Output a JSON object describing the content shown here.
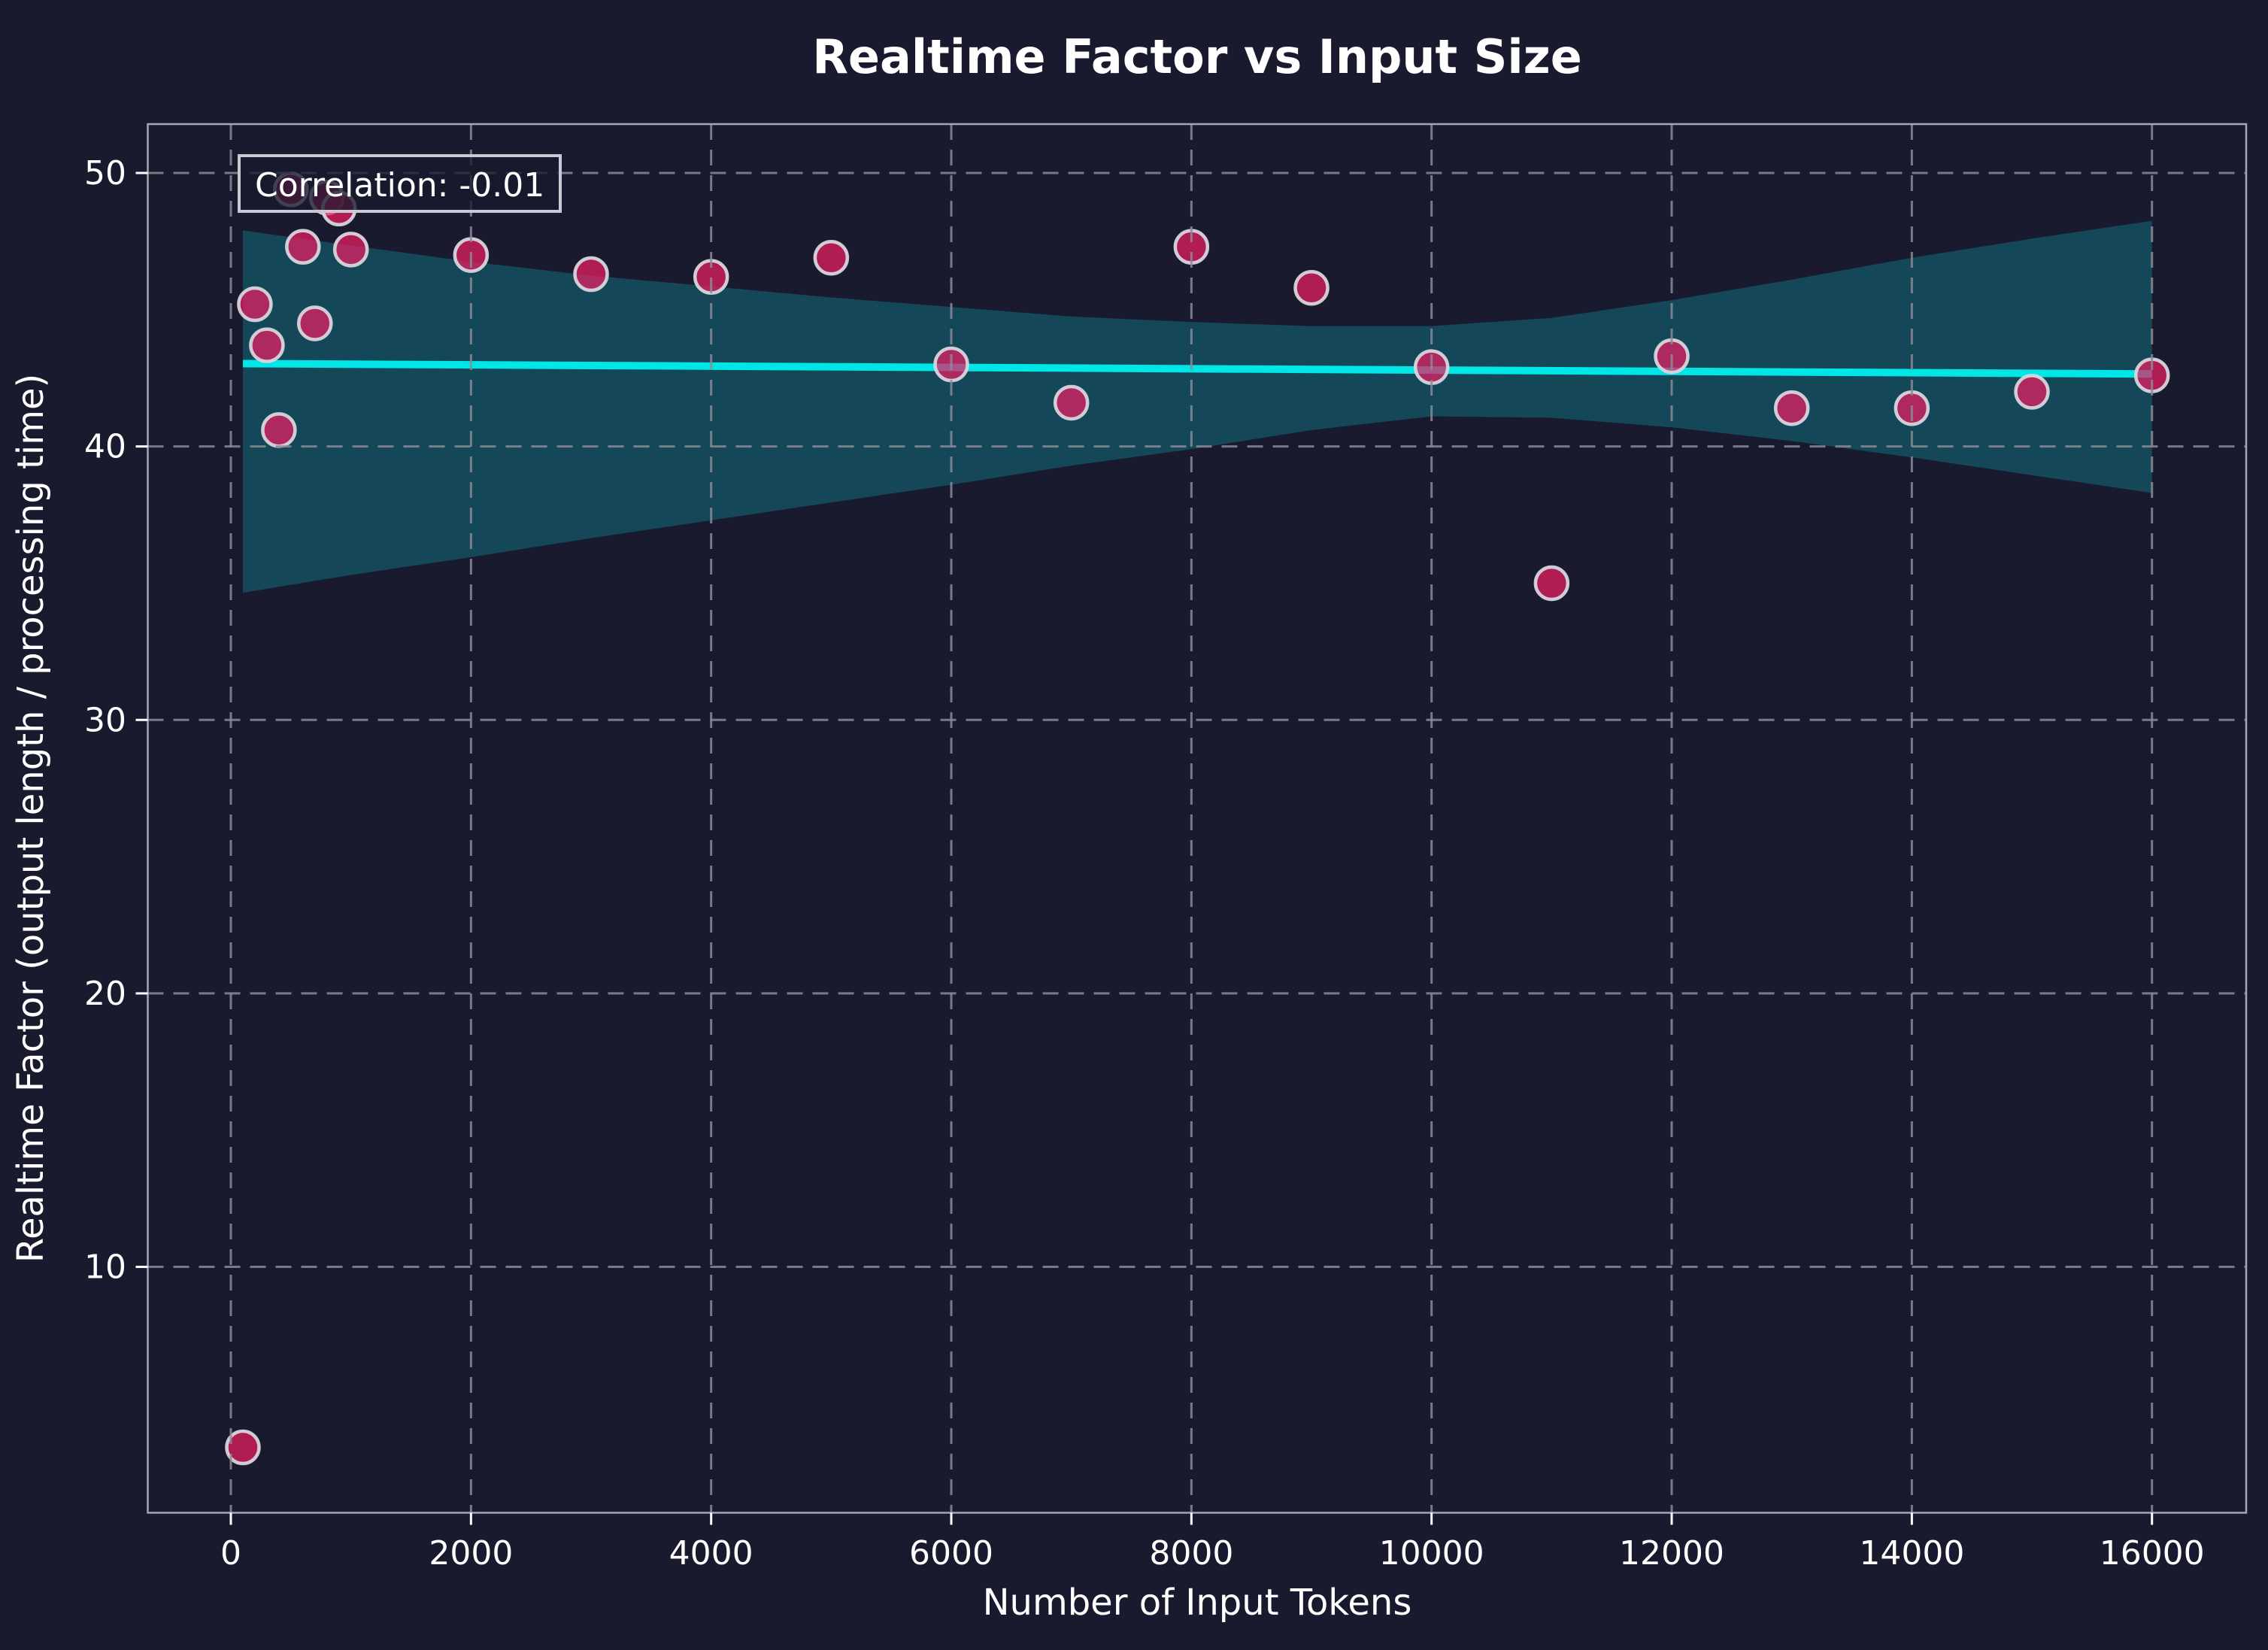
{
  "title": "Realtime Factor vs Input Size",
  "annotation": {
    "label": "Correlation: -0.01"
  },
  "axes": {
    "xlabel": "Number of Input Tokens",
    "ylabel": "Realtime Factor (output length / processing time)",
    "xticks": [
      0,
      2000,
      4000,
      6000,
      8000,
      10000,
      12000,
      14000,
      16000
    ],
    "yticks": [
      10,
      20,
      30,
      40,
      50
    ]
  },
  "chart_data": {
    "type": "scatter",
    "title": "Realtime Factor vs Input Size",
    "xlabel": "Number of Input Tokens",
    "ylabel": "Realtime Factor (output length / processing time)",
    "correlation": -0.01,
    "grid": "dashed, on top",
    "legend": "none",
    "xlim": [
      -700,
      16800
    ],
    "ylim": [
      1.0,
      51.8
    ],
    "points": [
      {
        "x": 100,
        "y": 3.4
      },
      {
        "x": 200,
        "y": 45.2
      },
      {
        "x": 300,
        "y": 43.7
      },
      {
        "x": 400,
        "y": 40.6
      },
      {
        "x": 500,
        "y": 49.4
      },
      {
        "x": 600,
        "y": 47.3
      },
      {
        "x": 700,
        "y": 44.5
      },
      {
        "x": 800,
        "y": 49.1
      },
      {
        "x": 900,
        "y": 48.7
      },
      {
        "x": 1000,
        "y": 47.2
      },
      {
        "x": 2000,
        "y": 47.0
      },
      {
        "x": 3000,
        "y": 46.3
      },
      {
        "x": 4000,
        "y": 46.2
      },
      {
        "x": 5000,
        "y": 46.9
      },
      {
        "x": 6000,
        "y": 43.0
      },
      {
        "x": 7000,
        "y": 41.6
      },
      {
        "x": 8000,
        "y": 47.3
      },
      {
        "x": 9000,
        "y": 45.8
      },
      {
        "x": 10000,
        "y": 42.9
      },
      {
        "x": 11000,
        "y": 35.0
      },
      {
        "x": 12000,
        "y": 43.3
      },
      {
        "x": 13000,
        "y": 41.4
      },
      {
        "x": 14000,
        "y": 41.4
      },
      {
        "x": 15000,
        "y": 42.0
      },
      {
        "x": 16000,
        "y": 42.6
      }
    ],
    "trendline": {
      "x0": 100,
      "y0": 43.03,
      "x1": 16000,
      "y1": 42.65
    },
    "ci_band": {
      "upper": [
        [
          100,
          47.9
        ],
        [
          1000,
          47.35
        ],
        [
          2000,
          46.75
        ],
        [
          3000,
          46.25
        ],
        [
          4000,
          45.85
        ],
        [
          5000,
          45.45
        ],
        [
          6000,
          45.1
        ],
        [
          7000,
          44.75
        ],
        [
          8000,
          44.55
        ],
        [
          9000,
          44.4
        ],
        [
          10000,
          44.4
        ],
        [
          11000,
          44.7
        ],
        [
          12000,
          45.35
        ],
        [
          13000,
          46.1
        ],
        [
          14000,
          46.9
        ],
        [
          15000,
          47.6
        ],
        [
          16000,
          48.25
        ]
      ],
      "lower": [
        [
          100,
          34.65
        ],
        [
          1000,
          35.3
        ],
        [
          2000,
          35.95
        ],
        [
          3000,
          36.65
        ],
        [
          4000,
          37.3
        ],
        [
          5000,
          37.95
        ],
        [
          6000,
          38.6
        ],
        [
          7000,
          39.3
        ],
        [
          8000,
          39.9
        ],
        [
          9000,
          40.6
        ],
        [
          10000,
          41.1
        ],
        [
          11000,
          41.05
        ],
        [
          12000,
          40.7
        ],
        [
          13000,
          40.2
        ],
        [
          14000,
          39.6
        ],
        [
          15000,
          38.95
        ],
        [
          16000,
          38.3
        ]
      ]
    }
  },
  "colors": {
    "background": "#1a1a2e",
    "grid": "#8b8b96",
    "spine": "#a6a6b0",
    "text": "#ffffff",
    "scatter_fill": "#e91e63",
    "scatter_edge": "#d8d5de",
    "trend_line": "#00e5e5",
    "ci_band_fill": "#00ffff",
    "annotation_border": "#c9c9d2",
    "annotation_fill": "#1a1a2e"
  }
}
